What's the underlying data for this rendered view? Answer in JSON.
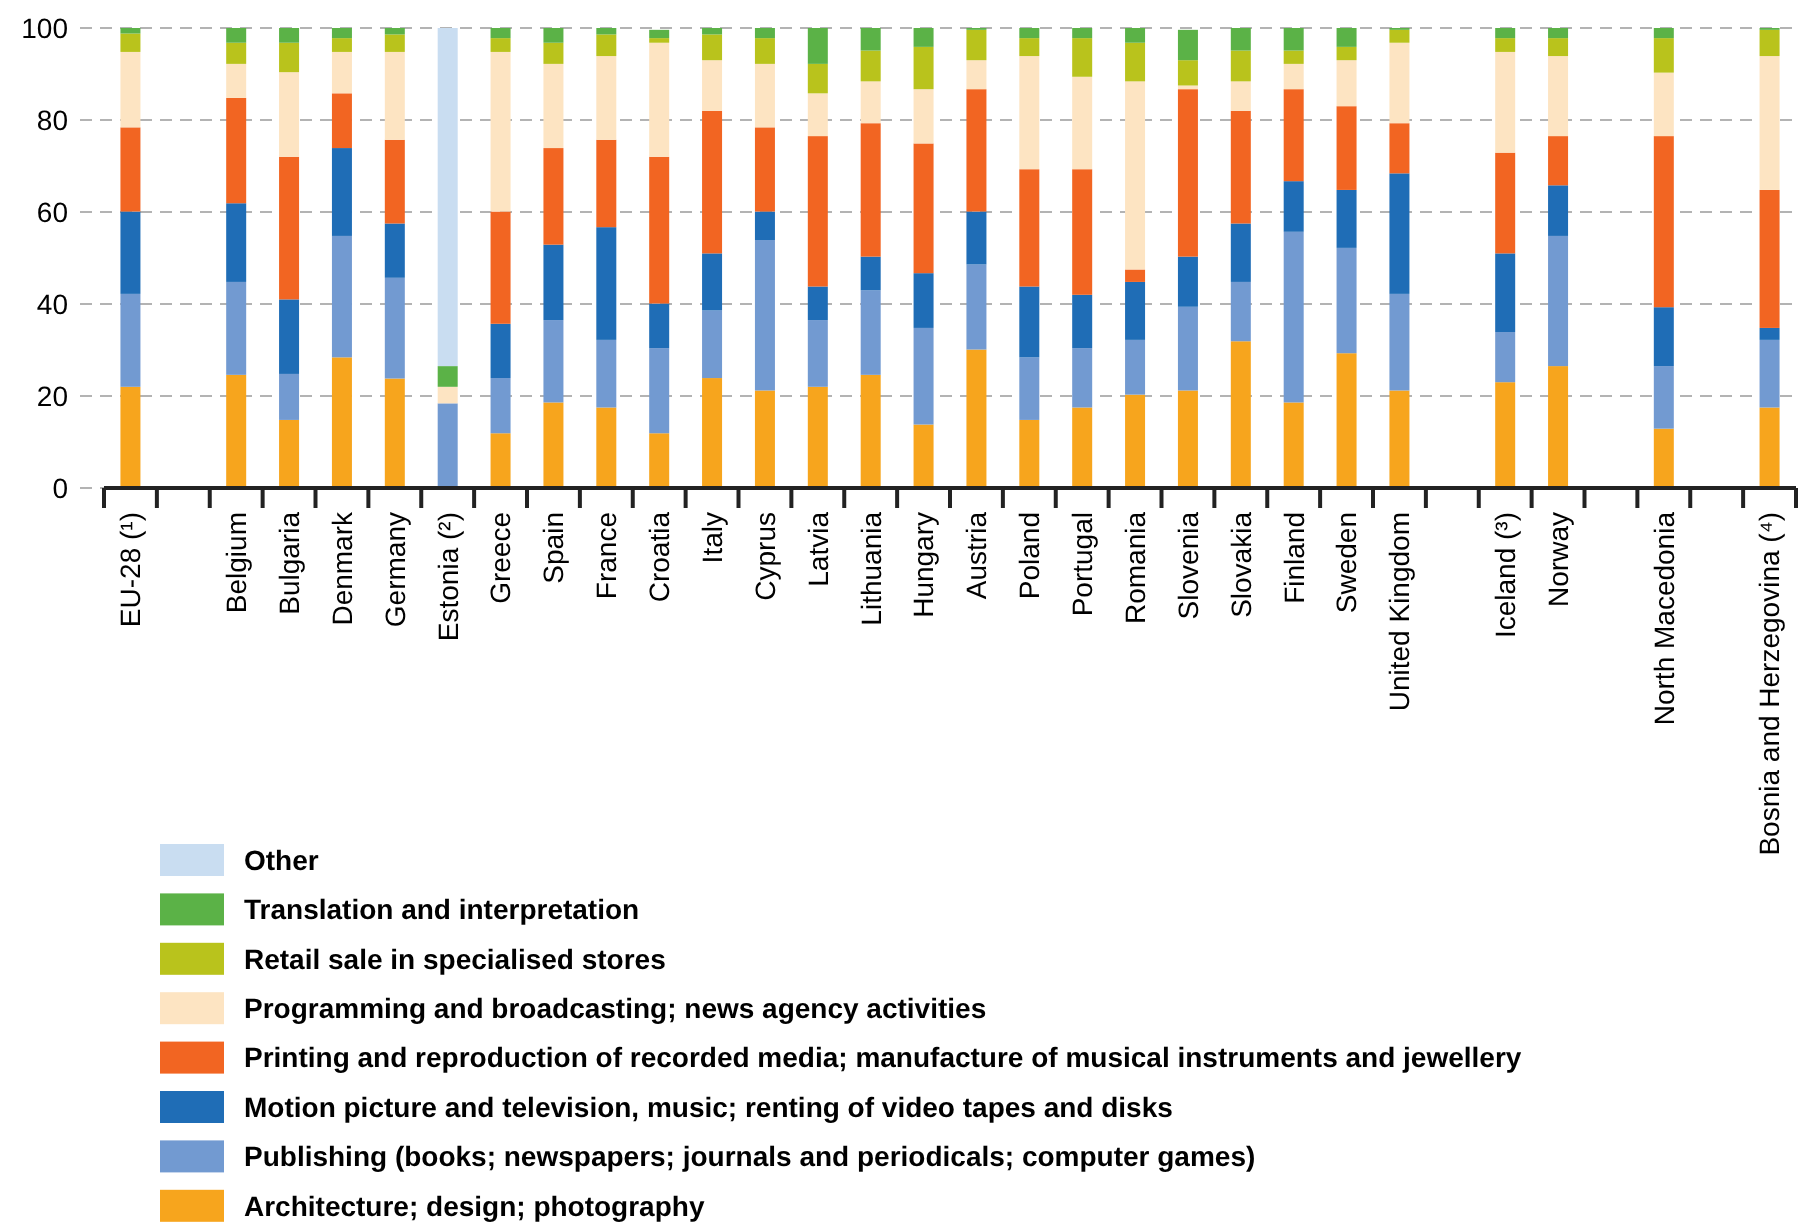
{
  "chart_data": {
    "type": "bar",
    "stacked": true,
    "categories": [
      "EU-28 (¹)",
      null,
      "Belgium",
      "Bulgaria",
      "Denmark",
      "Germany",
      "Estonia (²)",
      "Greece",
      "Spain",
      "France",
      "Croatia",
      "Italy",
      "Cyprus",
      "Latvia",
      "Lithuania",
      "Hungary",
      "Austria",
      "Poland",
      "Portugal",
      "Romania",
      "Slovenia",
      "Slovakia",
      "Finland",
      "Sweden",
      "United Kingdom",
      null,
      "Iceland (³)",
      "Norway",
      null,
      "North Macedonia",
      null,
      "Bosnia and Herzegovina (⁴)"
    ],
    "series": [
      {
        "name": "Architecture; design; photography",
        "color": "#f7a51d",
        "values": [
          22.0,
          null,
          24.6,
          14.8,
          28.4,
          23.8,
          0,
          11.9,
          18.6,
          17.5,
          11.9,
          23.9,
          21.2,
          22.0,
          24.6,
          13.8,
          30.1,
          14.8,
          17.5,
          20.3,
          21.2,
          31.9,
          18.6,
          29.3,
          21.2,
          null,
          23.0,
          26.5,
          null,
          12.9,
          null,
          17.5
        ]
      },
      {
        "name": "Publishing (books; newspapers; journals and periodicals; computer games)",
        "color": "#729ad1",
        "values": [
          20.2,
          null,
          20.2,
          10.0,
          26.4,
          21.9,
          18.4,
          12.0,
          17.9,
          14.7,
          18.5,
          14.7,
          32.7,
          14.5,
          18.4,
          21.0,
          18.5,
          13.6,
          12.9,
          11.9,
          18.2,
          12.9,
          37.1,
          22.9,
          21.0,
          null,
          10.9,
          28.3,
          null,
          13.6,
          null,
          14.7
        ]
      },
      {
        "name": "Motion picture and television, music; renting of video tapes and disks",
        "color": "#1f6db6",
        "values": [
          17.9,
          null,
          17.1,
          16.2,
          19.1,
          11.8,
          0,
          11.8,
          16.4,
          24.5,
          9.7,
          12.4,
          6.2,
          7.3,
          7.3,
          11.9,
          11.5,
          15.4,
          11.6,
          12.6,
          10.9,
          12.7,
          11.0,
          12.6,
          26.2,
          null,
          17.1,
          11.0,
          null,
          12.8,
          null,
          2.6
        ]
      },
      {
        "name": "Printing and reproduction of recorded media; manufacture of musical instruments and jewellery",
        "color": "#f26522",
        "values": [
          18.3,
          null,
          22.9,
          31.0,
          11.9,
          18.2,
          0,
          24.4,
          21.0,
          19.0,
          31.9,
          31.0,
          18.3,
          32.7,
          29.0,
          28.2,
          26.6,
          25.5,
          27.3,
          2.7,
          36.4,
          24.5,
          20.0,
          18.2,
          10.9,
          null,
          21.9,
          10.7,
          null,
          37.2,
          null,
          30.0
        ]
      },
      {
        "name": "Programming and broadcasting; news agency activities",
        "color": "#fde4c2",
        "values": [
          16.4,
          null,
          7.4,
          18.4,
          9.0,
          19.1,
          3.6,
          34.7,
          18.3,
          18.2,
          24.8,
          11.0,
          13.8,
          9.3,
          9.1,
          11.8,
          6.3,
          24.6,
          20.1,
          40.9,
          0.8,
          6.4,
          5.5,
          10.0,
          17.5,
          null,
          21.9,
          17.4,
          null,
          13.8,
          null,
          29.1
        ]
      },
      {
        "name": "Retail sale in specialised stores",
        "color": "#b9c31c",
        "values": [
          4.0,
          null,
          4.6,
          6.4,
          3.0,
          3.8,
          0,
          3.0,
          4.6,
          4.7,
          1.0,
          5.6,
          5.6,
          6.4,
          6.7,
          9.2,
          6.6,
          3.9,
          8.4,
          8.4,
          5.5,
          6.7,
          2.9,
          2.9,
          2.8,
          null,
          3.0,
          3.9,
          null,
          7.5,
          null,
          5.7
        ]
      },
      {
        "name": "Translation and interpretation",
        "color": "#5bb247",
        "values": [
          1.2,
          null,
          3.2,
          3.2,
          2.2,
          1.4,
          4.5,
          2.2,
          3.2,
          1.4,
          1.8,
          1.4,
          2.2,
          7.8,
          4.9,
          4.1,
          0.4,
          2.2,
          2.2,
          3.2,
          6.6,
          4.9,
          4.9,
          4.1,
          0.4,
          null,
          2.2,
          2.2,
          null,
          2.2,
          null,
          0.4
        ]
      },
      {
        "name": "Other",
        "color": "#c9ddf1",
        "values": [
          0,
          null,
          0,
          0,
          0,
          0,
          73.5,
          0,
          0,
          0,
          null,
          0,
          0,
          0,
          0,
          0,
          0,
          0,
          0,
          0,
          null,
          0,
          0,
          0,
          0,
          null,
          0,
          0,
          null,
          0,
          null,
          0
        ]
      }
    ],
    "ylim": [
      0,
      100
    ],
    "yticks": [
      0,
      20,
      40,
      60,
      80,
      100
    ],
    "grid": "y",
    "legend": "bottom"
  }
}
